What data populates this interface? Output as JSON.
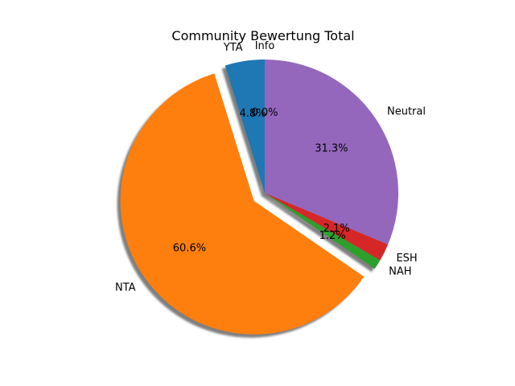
{
  "chart_data": {
    "type": "pie",
    "title": "Community Bewertung Total",
    "labels": [
      "YTA",
      "NTA",
      "NAH",
      "ESH",
      "Neutral",
      "Info"
    ],
    "values": [
      4.8,
      60.6,
      1.2,
      2.1,
      31.3,
      0.0
    ],
    "autopct_labels": [
      "4.8%",
      "60.6%",
      "1.2%",
      "2.1%",
      "31.3%",
      "0.0%"
    ],
    "colors": [
      "#1f77b4",
      "#ff7f0e",
      "#2ca02c",
      "#d62728",
      "#9467bd",
      "#8c564b"
    ],
    "exploded": [
      "NTA"
    ],
    "shadow": true,
    "start_angle_deg": 90,
    "direction": "counterclockwise"
  }
}
